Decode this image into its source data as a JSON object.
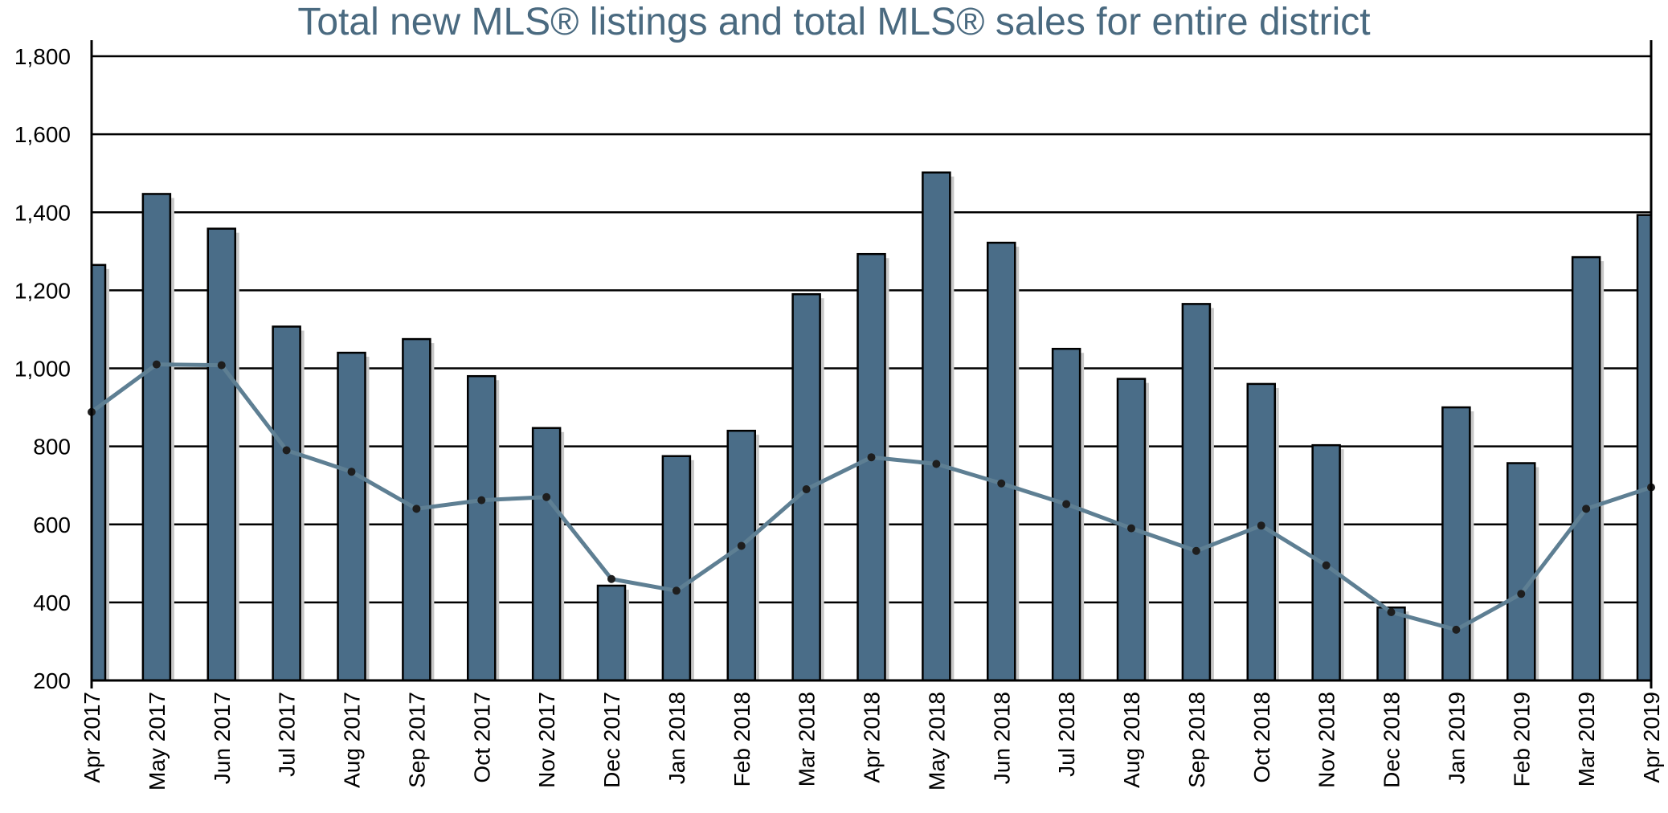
{
  "chart_data": {
    "type": "bar",
    "title": "Total new MLS® listings and total MLS® sales for entire district",
    "xlabel": "",
    "ylabel": "",
    "ylim": [
      200,
      1800
    ],
    "yticks": [
      200,
      400,
      600,
      800,
      1000,
      1200,
      1400,
      1600,
      1800
    ],
    "ytick_labels": [
      "200",
      "400",
      "600",
      "800",
      "1,000",
      "1,200",
      "1,400",
      "1,600",
      "1,800"
    ],
    "grid": true,
    "categories": [
      "Apr 2017",
      "May 2017",
      "Jun 2017",
      "Jul 2017",
      "Aug 2017",
      "Sep 2017",
      "Oct 2017",
      "Nov 2017",
      "Dec 2017",
      "Jan 2018",
      "Feb 2018",
      "Mar 2018",
      "Apr 2018",
      "May 2018",
      "Jun 2018",
      "Jul 2018",
      "Aug 2018",
      "Sep 2018",
      "Oct 2018",
      "Nov 2018",
      "Dec 2018",
      "Jan 2019",
      "Feb 2019",
      "Mar 2019",
      "Apr 2019"
    ],
    "series": [
      {
        "name": "Total new MLS® listings",
        "type": "bar",
        "color": "#4a6d88",
        "values": [
          1265,
          1447,
          1358,
          1107,
          1040,
          1075,
          980,
          847,
          443,
          775,
          840,
          1190,
          1293,
          1502,
          1322,
          1050,
          973,
          1165,
          960,
          803,
          387,
          900,
          757,
          1285,
          1393
        ]
      },
      {
        "name": "Total MLS® sales",
        "type": "line",
        "color": "#5e7f93",
        "values": [
          888,
          1010,
          1008,
          790,
          735,
          640,
          662,
          670,
          460,
          430,
          545,
          690,
          772,
          755,
          705,
          652,
          590,
          532,
          597,
          495,
          375,
          330,
          422,
          640,
          695
        ]
      }
    ]
  }
}
